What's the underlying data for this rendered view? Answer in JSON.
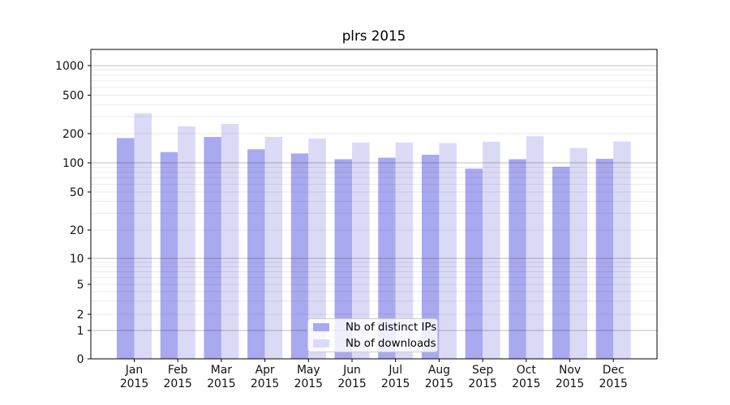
{
  "chart_data": {
    "type": "bar",
    "title": "plrs 2015",
    "xlabel": "",
    "ylabel": "",
    "yscale": "symlog",
    "grid": "horizontal major and minor, drawn over bars",
    "legend_position": "lower center",
    "xtick_year": "2015",
    "categories": [
      "Jan",
      "Feb",
      "Mar",
      "Apr",
      "May",
      "Jun",
      "Jul",
      "Aug",
      "Sep",
      "Oct",
      "Nov",
      "Dec"
    ],
    "yticks": [
      0,
      1,
      2,
      5,
      10,
      20,
      50,
      100,
      200,
      500,
      1000
    ],
    "ytick_labels": [
      "0",
      "1",
      "2",
      "5",
      "10",
      "20",
      "50",
      "100",
      "200",
      "500",
      "1000"
    ],
    "ylim": [
      0,
      1400
    ],
    "series": [
      {
        "name": "Nb of distinct IPs",
        "color": "#a9a9ef",
        "values": [
          180,
          129,
          185,
          138,
          125,
          109,
          113,
          121,
          87,
          109,
          91,
          110
        ]
      },
      {
        "name": "Nb of downloads",
        "color": "#dadaf7",
        "values": [
          325,
          238,
          252,
          185,
          178,
          162,
          162,
          160,
          165,
          188,
          142,
          166
        ]
      }
    ]
  },
  "colors": {
    "grid_minor": "rgba(0,0,0,0.08)",
    "grid_major": "rgba(0,0,0,0.26)",
    "axis": "#000000",
    "tick_text": "#111111",
    "legend_border": "#cccccc"
  }
}
